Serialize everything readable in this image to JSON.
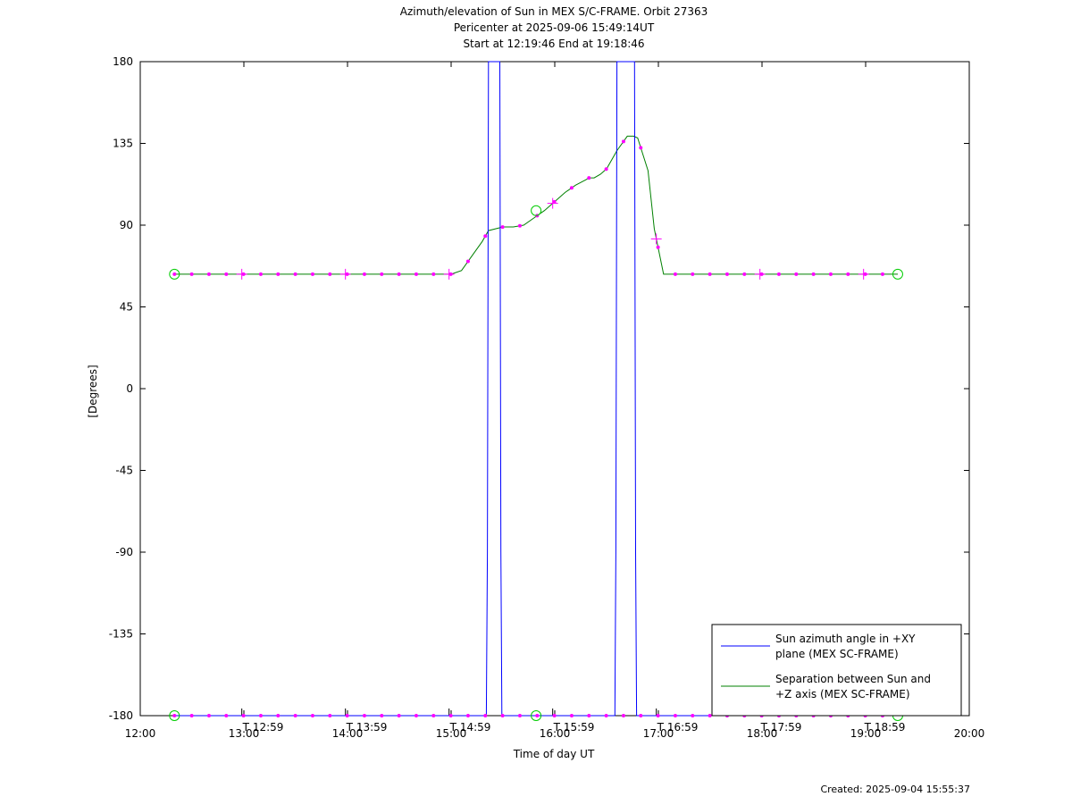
{
  "header": {
    "title": "Azimuth/elevation of Sun in MEX S/C-FRAME.  Orbit 27363",
    "subtitle1": "Pericenter at 2025-09-06 15:49:14UT",
    "subtitle2": "Start at 12:19:46 End at 19:18:46"
  },
  "footer": {
    "created": "Created: 2025-09-04 15:55:37"
  },
  "chart_data": {
    "type": "line",
    "xlabel": "Time of day UT",
    "ylabel": "[Degrees]",
    "xlim": [
      12,
      20
    ],
    "ylim": [
      -180,
      180
    ],
    "x_ticks": [
      {
        "value": 12,
        "label": "12:00"
      },
      {
        "value": 13,
        "label": "13:00"
      },
      {
        "value": 14,
        "label": "14:00"
      },
      {
        "value": 15,
        "label": "15:00"
      },
      {
        "value": 16,
        "label": "16:00"
      },
      {
        "value": 17,
        "label": "17:00"
      },
      {
        "value": 18,
        "label": "18:00"
      },
      {
        "value": 19,
        "label": "19:00"
      },
      {
        "value": 20,
        "label": "20:00"
      }
    ],
    "y_ticks": [
      180,
      135,
      90,
      45,
      0,
      -45,
      -90,
      -135,
      -180
    ],
    "time_markers": [
      {
        "value": 12.98,
        "label": "T 12:59"
      },
      {
        "value": 13.98,
        "label": "T 13:59"
      },
      {
        "value": 14.98,
        "label": "T 14:59"
      },
      {
        "value": 15.98,
        "label": "T 15:59"
      },
      {
        "value": 16.98,
        "label": "T 16:59"
      },
      {
        "value": 17.98,
        "label": "T 17:59"
      },
      {
        "value": 18.98,
        "label": "T 18:59"
      }
    ],
    "legend": {
      "placement": "bottom-right",
      "entries": [
        {
          "line1": "Sun azimuth angle in +XY",
          "line2": "plane (MEX SC-FRAME)",
          "color": "#0000ff"
        },
        {
          "line1": "Separation between Sun and",
          "line2": "+Z axis (MEX SC-FRAME)",
          "color": "#008000"
        }
      ]
    },
    "series": [
      {
        "color": "#008000",
        "x": [
          12.33,
          15.0,
          15.1,
          15.2,
          15.3,
          15.36,
          15.5,
          15.6,
          15.7,
          15.8,
          15.9,
          16.0,
          16.1,
          16.2,
          16.3,
          16.33,
          16.38,
          16.44,
          16.5,
          16.6,
          16.7,
          16.76,
          16.8,
          16.9,
          16.96,
          17.05,
          19.31
        ],
        "values": [
          63,
          63,
          65,
          73,
          81,
          87,
          89,
          89,
          90,
          94,
          98,
          103,
          108,
          112,
          115,
          116,
          116,
          118,
          121,
          131,
          139,
          139,
          138,
          120,
          88,
          63,
          63
        ]
      },
      {
        "color": "#0000ff",
        "x": [
          12.33,
          15.34,
          15.35,
          15.36,
          15.47,
          15.48,
          15.49,
          16.58,
          16.59,
          16.6,
          16.77,
          16.78,
          16.79,
          19.31
        ],
        "values": [
          -180,
          -180,
          -90,
          180,
          180,
          -90,
          -180,
          -180,
          -90,
          180,
          180,
          -90,
          -180,
          -180
        ]
      }
    ],
    "markers": {
      "color": "#ff00ff",
      "green_x": [
        12.33,
        19.31,
        12.33,
        15.82,
        19.31
      ],
      "green_y": [
        63,
        63,
        -180,
        -180,
        -180
      ],
      "green_on_curve_x": [
        15.82
      ],
      "green_on_curve_y": [
        98
      ]
    }
  }
}
